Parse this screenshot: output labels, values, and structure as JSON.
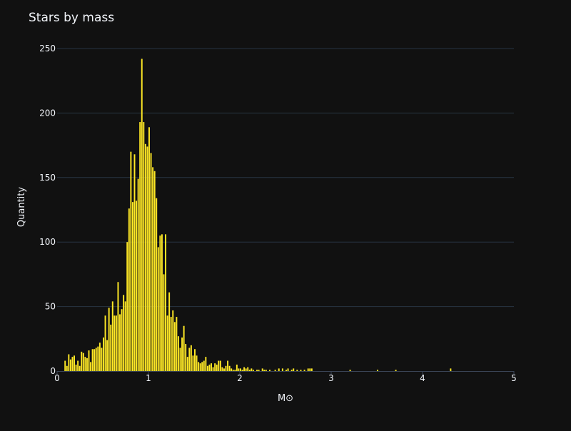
{
  "colors": {
    "background": "#111111",
    "grid": "#283442",
    "bar": "#FDE725",
    "text": "#f2f5fa"
  },
  "chart_data": {
    "type": "bar",
    "title": "Stars by mass",
    "xlabel": "M⊙",
    "ylabel": "Quantity",
    "xlim": [
      0,
      5
    ],
    "ylim": [
      0,
      250
    ],
    "grid": true,
    "legend": "none",
    "xticks": [
      "0",
      "1",
      "2",
      "3",
      "4",
      "5"
    ],
    "yticks": [
      "0",
      "50",
      "100",
      "150",
      "200",
      "250"
    ],
    "bin_width": 0.02,
    "bins": [
      {
        "x": 0.09,
        "y": 8
      },
      {
        "x": 0.11,
        "y": 4
      },
      {
        "x": 0.13,
        "y": 13
      },
      {
        "x": 0.15,
        "y": 9
      },
      {
        "x": 0.17,
        "y": 11
      },
      {
        "x": 0.19,
        "y": 12
      },
      {
        "x": 0.21,
        "y": 5
      },
      {
        "x": 0.23,
        "y": 8
      },
      {
        "x": 0.25,
        "y": 4
      },
      {
        "x": 0.27,
        "y": 15
      },
      {
        "x": 0.29,
        "y": 14
      },
      {
        "x": 0.31,
        "y": 11
      },
      {
        "x": 0.33,
        "y": 10
      },
      {
        "x": 0.35,
        "y": 16
      },
      {
        "x": 0.37,
        "y": 7
      },
      {
        "x": 0.39,
        "y": 17
      },
      {
        "x": 0.41,
        "y": 17
      },
      {
        "x": 0.43,
        "y": 18
      },
      {
        "x": 0.45,
        "y": 19
      },
      {
        "x": 0.47,
        "y": 22
      },
      {
        "x": 0.49,
        "y": 18
      },
      {
        "x": 0.51,
        "y": 26
      },
      {
        "x": 0.53,
        "y": 43
      },
      {
        "x": 0.55,
        "y": 24
      },
      {
        "x": 0.57,
        "y": 49
      },
      {
        "x": 0.59,
        "y": 36
      },
      {
        "x": 0.61,
        "y": 54
      },
      {
        "x": 0.63,
        "y": 43
      },
      {
        "x": 0.65,
        "y": 43
      },
      {
        "x": 0.67,
        "y": 69
      },
      {
        "x": 0.69,
        "y": 44
      },
      {
        "x": 0.71,
        "y": 48
      },
      {
        "x": 0.73,
        "y": 59
      },
      {
        "x": 0.75,
        "y": 54
      },
      {
        "x": 0.77,
        "y": 100
      },
      {
        "x": 0.79,
        "y": 126
      },
      {
        "x": 0.81,
        "y": 170
      },
      {
        "x": 0.83,
        "y": 131
      },
      {
        "x": 0.85,
        "y": 168
      },
      {
        "x": 0.87,
        "y": 132
      },
      {
        "x": 0.89,
        "y": 149
      },
      {
        "x": 0.91,
        "y": 193
      },
      {
        "x": 0.93,
        "y": 242
      },
      {
        "x": 0.95,
        "y": 193
      },
      {
        "x": 0.97,
        "y": 176
      },
      {
        "x": 0.99,
        "y": 174
      },
      {
        "x": 1.01,
        "y": 189
      },
      {
        "x": 1.03,
        "y": 169
      },
      {
        "x": 1.05,
        "y": 158
      },
      {
        "x": 1.07,
        "y": 155
      },
      {
        "x": 1.09,
        "y": 134
      },
      {
        "x": 1.11,
        "y": 96
      },
      {
        "x": 1.13,
        "y": 105
      },
      {
        "x": 1.15,
        "y": 106
      },
      {
        "x": 1.17,
        "y": 75
      },
      {
        "x": 1.19,
        "y": 106
      },
      {
        "x": 1.21,
        "y": 43
      },
      {
        "x": 1.23,
        "y": 61
      },
      {
        "x": 1.25,
        "y": 42
      },
      {
        "x": 1.27,
        "y": 47
      },
      {
        "x": 1.29,
        "y": 38
      },
      {
        "x": 1.31,
        "y": 42
      },
      {
        "x": 1.33,
        "y": 27
      },
      {
        "x": 1.35,
        "y": 18
      },
      {
        "x": 1.37,
        "y": 26
      },
      {
        "x": 1.39,
        "y": 35
      },
      {
        "x": 1.41,
        "y": 21
      },
      {
        "x": 1.43,
        "y": 11
      },
      {
        "x": 1.45,
        "y": 18
      },
      {
        "x": 1.47,
        "y": 20
      },
      {
        "x": 1.49,
        "y": 12
      },
      {
        "x": 1.51,
        "y": 17
      },
      {
        "x": 1.53,
        "y": 12
      },
      {
        "x": 1.55,
        "y": 7
      },
      {
        "x": 1.57,
        "y": 6
      },
      {
        "x": 1.59,
        "y": 7
      },
      {
        "x": 1.61,
        "y": 8
      },
      {
        "x": 1.63,
        "y": 11
      },
      {
        "x": 1.65,
        "y": 4
      },
      {
        "x": 1.67,
        "y": 5
      },
      {
        "x": 1.69,
        "y": 6
      },
      {
        "x": 1.71,
        "y": 3
      },
      {
        "x": 1.73,
        "y": 6
      },
      {
        "x": 1.75,
        "y": 5
      },
      {
        "x": 1.77,
        "y": 8
      },
      {
        "x": 1.79,
        "y": 8
      },
      {
        "x": 1.81,
        "y": 3
      },
      {
        "x": 1.83,
        "y": 2
      },
      {
        "x": 1.85,
        "y": 4
      },
      {
        "x": 1.87,
        "y": 8
      },
      {
        "x": 1.89,
        "y": 4
      },
      {
        "x": 1.91,
        "y": 2
      },
      {
        "x": 1.93,
        "y": 1
      },
      {
        "x": 1.95,
        "y": 1
      },
      {
        "x": 1.97,
        "y": 5
      },
      {
        "x": 1.99,
        "y": 2
      },
      {
        "x": 2.01,
        "y": 2
      },
      {
        "x": 2.03,
        "y": 1
      },
      {
        "x": 2.05,
        "y": 3
      },
      {
        "x": 2.07,
        "y": 2
      },
      {
        "x": 2.09,
        "y": 3
      },
      {
        "x": 2.11,
        "y": 1
      },
      {
        "x": 2.13,
        "y": 2
      },
      {
        "x": 2.15,
        "y": 1
      },
      {
        "x": 2.19,
        "y": 1
      },
      {
        "x": 2.21,
        "y": 1
      },
      {
        "x": 2.25,
        "y": 2
      },
      {
        "x": 2.27,
        "y": 1
      },
      {
        "x": 2.29,
        "y": 1
      },
      {
        "x": 2.33,
        "y": 1
      },
      {
        "x": 2.39,
        "y": 1
      },
      {
        "x": 2.43,
        "y": 2
      },
      {
        "x": 2.47,
        "y": 2
      },
      {
        "x": 2.51,
        "y": 1
      },
      {
        "x": 2.53,
        "y": 2
      },
      {
        "x": 2.57,
        "y": 1
      },
      {
        "x": 2.59,
        "y": 2
      },
      {
        "x": 2.63,
        "y": 1
      },
      {
        "x": 2.67,
        "y": 1
      },
      {
        "x": 2.71,
        "y": 1
      },
      {
        "x": 2.75,
        "y": 2
      },
      {
        "x": 2.77,
        "y": 2
      },
      {
        "x": 2.79,
        "y": 2
      },
      {
        "x": 3.21,
        "y": 1
      },
      {
        "x": 3.51,
        "y": 1
      },
      {
        "x": 3.71,
        "y": 1
      },
      {
        "x": 4.31,
        "y": 2
      }
    ]
  }
}
